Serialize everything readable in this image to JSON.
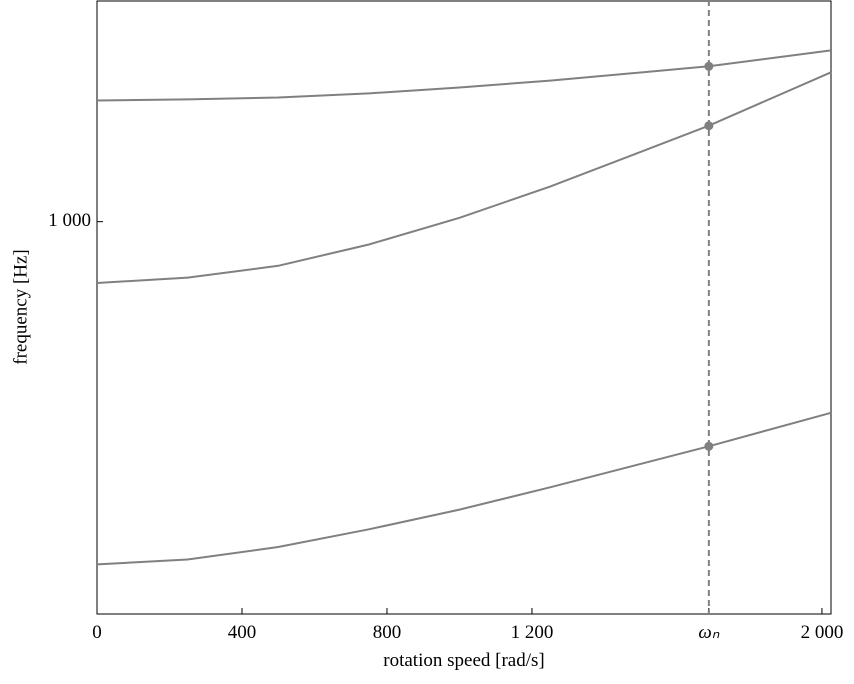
{
  "chart_data": {
    "type": "line",
    "x_label": "rotation speed [rad/s]",
    "y_label": "frequency [Hz]",
    "x": [
      0,
      250,
      500,
      750,
      1000,
      1250,
      1688,
      2025
    ],
    "series": [
      {
        "color": "#808080",
        "values": [
          1284,
          1287,
          1292,
          1303,
          1319,
          1338,
          1378,
          1424
        ]
      },
      {
        "color": "#808080",
        "values": [
          881,
          891,
          913,
          954,
          1008,
          1075,
          1219,
          1361
        ]
      },
      {
        "color": "#808080",
        "values": [
          493,
          498,
          511,
          530,
          552,
          578,
          629,
          674
        ]
      }
    ],
    "xlim": [
      0,
      2025
    ],
    "xticks": [
      0,
      400,
      800,
      {
        "value": 1200,
        "label": "1 200"
      },
      {
        "value": 1688,
        "label": "ωₙ"
      },
      {
        "value": 2000,
        "label": "2 000"
      }
    ],
    "ylim": [
      445,
      1580
    ],
    "yticks": [
      {
        "value": 1000,
        "label": "1 000"
      }
    ],
    "log_y": true,
    "marker_tick": 4
  }
}
